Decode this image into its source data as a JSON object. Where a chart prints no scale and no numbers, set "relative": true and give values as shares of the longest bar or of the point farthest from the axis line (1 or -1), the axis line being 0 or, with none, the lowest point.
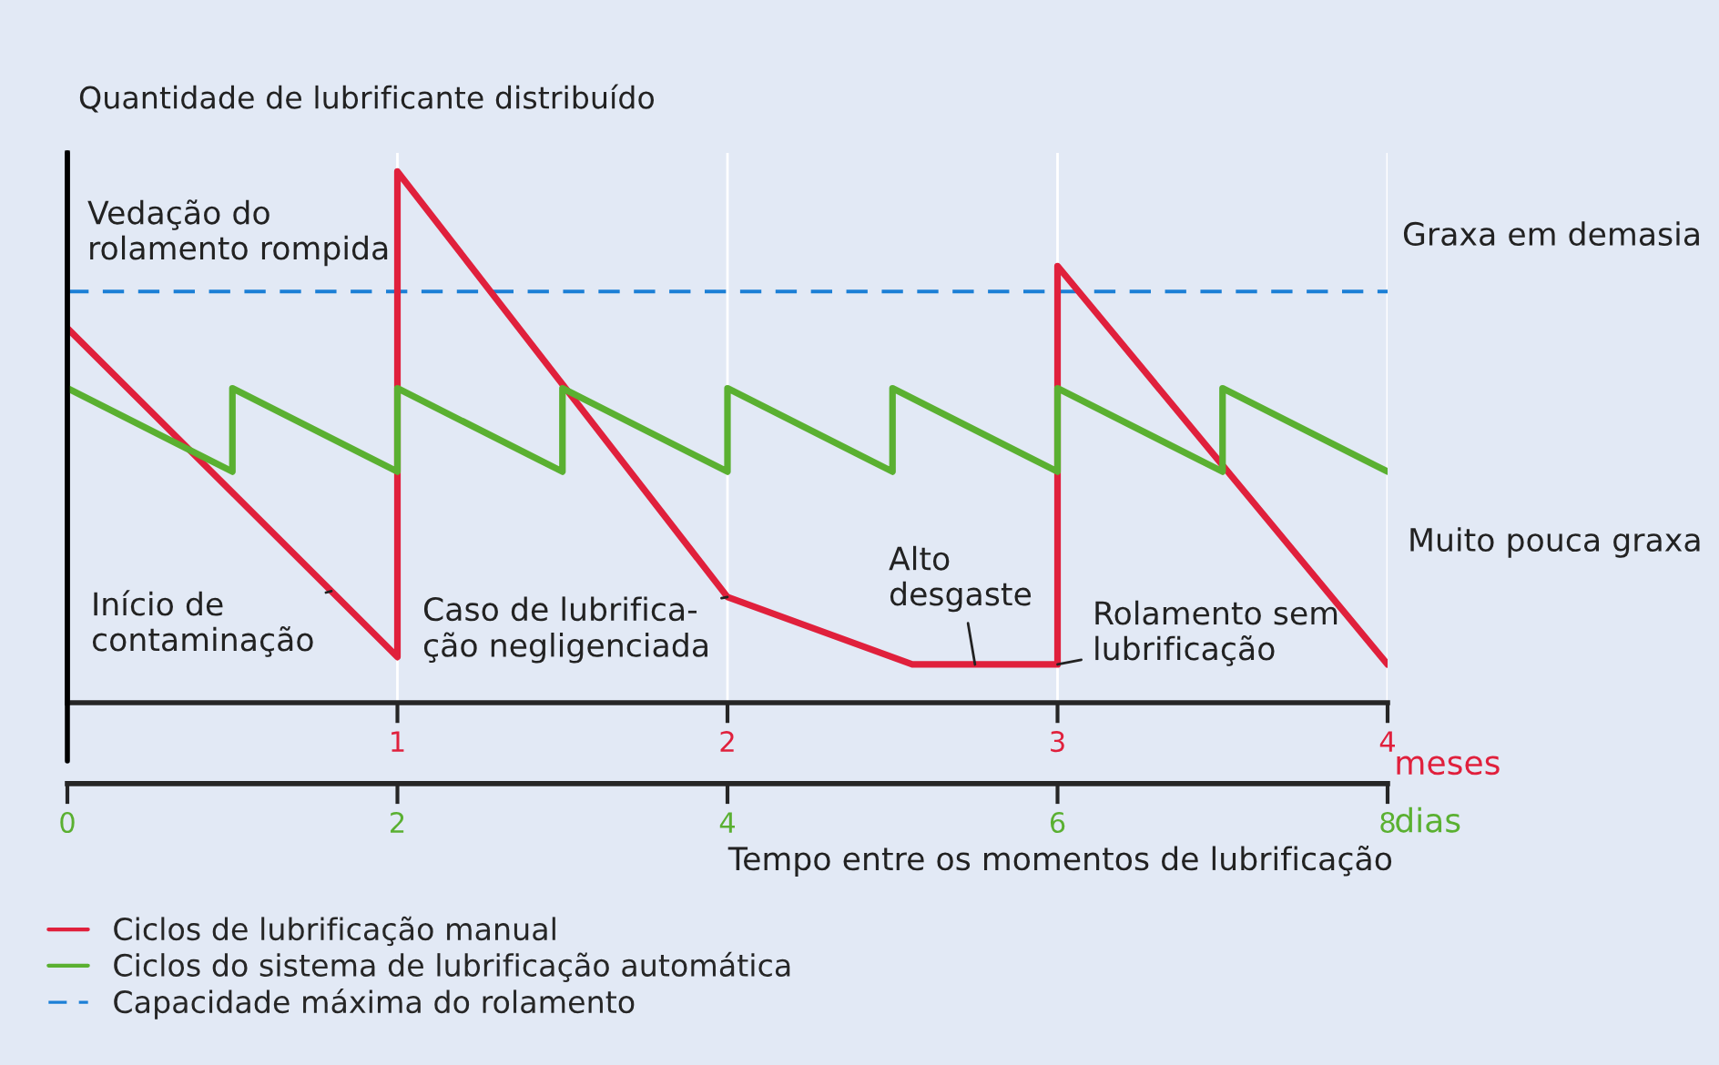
{
  "chart_data": {
    "type": "line",
    "relative": true,
    "ylabel": "Quantidade de lubrificante distribuído",
    "xlabel": "meses",
    "x2label": "dias",
    "xlim": [
      0,
      4
    ],
    "xticks": [
      1,
      2,
      3,
      4
    ],
    "x2lim": [
      0,
      8
    ],
    "x2ticks": [
      0,
      2,
      4,
      6,
      8
    ],
    "grid": "x",
    "legend": "bottom",
    "line_style": "solid",
    "marker": "none",
    "series": [
      {
        "name": "Ciclos de lubrificação manual",
        "color": "#e0203c",
        "x": [
          0,
          1,
          1,
          2,
          2.56,
          3,
          3,
          4
        ],
        "values": [
          0.705,
          0.086,
          1.0,
          0.199,
          0.072,
          0.072,
          0.822,
          0.072
        ]
      },
      {
        "name": "Ciclos do sistema de lubrificação automática",
        "color": "#5ab031",
        "axis": "x2",
        "x": [
          0,
          1,
          1,
          2,
          2,
          3,
          3,
          4,
          4,
          5,
          5,
          6,
          6,
          7,
          7,
          8
        ],
        "values": [
          0.592,
          0.435,
          0.592,
          0.435,
          0.592,
          0.435,
          0.592,
          0.435,
          0.592,
          0.435,
          0.592,
          0.435,
          0.592,
          0.435,
          0.592,
          0.435
        ]
      }
    ],
    "ref_lines": [
      {
        "axis": "y",
        "value": 0.774,
        "label": "Capacidade máxima do rolamento",
        "color": "#1b7fd6",
        "line_style": "dashed"
      }
    ],
    "annotations": [
      "Vedação do\nrolamento rompida",
      {
        "text": "Início de\ncontaminação",
        "x": 0.8,
        "y": 0.21
      },
      {
        "text": "Caso de lubrifica-\nção negligenciada",
        "x": 2,
        "y": 0.199
      },
      {
        "text": "Alto\ndesgaste",
        "x": 2.75,
        "y": 0.072
      },
      {
        "text": "Rolamento sem\nlubrificação",
        "x": 3,
        "y": 0.072
      },
      "Graxa em demasia",
      "Muito pouca graxa",
      "Tempo entre os momentos de lubrificação"
    ]
  }
}
